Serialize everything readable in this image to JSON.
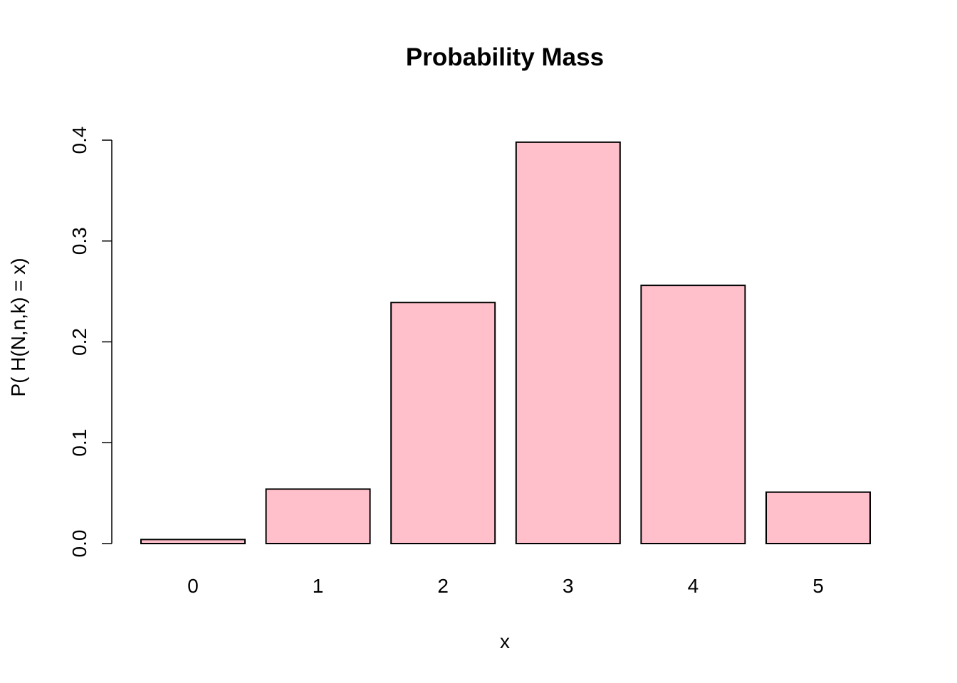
{
  "chart_data": {
    "type": "bar",
    "title": "Probability Mass",
    "xlabel": "x",
    "ylabel": "P( H(N,n,k) = x)",
    "categories": [
      "0",
      "1",
      "2",
      "3",
      "4",
      "5"
    ],
    "values": [
      0.004,
      0.054,
      0.239,
      0.398,
      0.256,
      0.051
    ],
    "ylim": [
      0,
      0.4
    ],
    "yticks": [
      "0.0",
      "0.1",
      "0.2",
      "0.3",
      "0.4"
    ],
    "bar_color": "#FFC0CB",
    "grid": false,
    "legend": "none"
  }
}
